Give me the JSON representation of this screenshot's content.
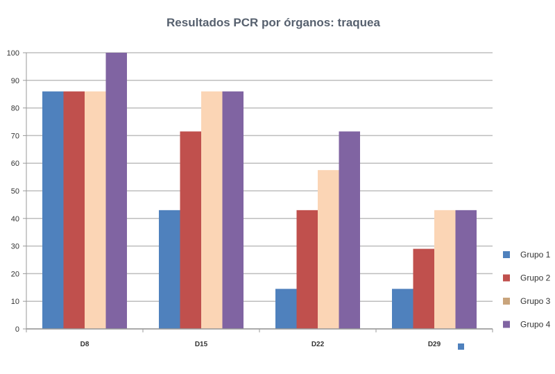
{
  "chart_data": {
    "type": "bar",
    "title": "Resultados PCR por órganos: traquea",
    "categories": [
      "D8",
      "D15",
      "D22",
      "D29"
    ],
    "ylim": [
      0,
      100
    ],
    "yticks": [
      0,
      10,
      20,
      30,
      40,
      50,
      60,
      70,
      80,
      90,
      100
    ],
    "grid": true,
    "legend_position": "right",
    "series": [
      {
        "name": "Grupo 1",
        "color": "#4f81bd",
        "values": [
          86,
          43,
          14.5,
          14.5
        ]
      },
      {
        "name": "Grupo 2",
        "color": "#c0504d",
        "values": [
          86,
          71.5,
          43,
          29
        ]
      },
      {
        "name": "Grupo 3",
        "color": "#fbd5b5",
        "legend_color": "#c9a47c",
        "values": [
          86,
          86,
          57.5,
          43
        ]
      },
      {
        "name": "Grupo 4",
        "color": "#8064a2",
        "values": [
          100,
          86,
          71.5,
          43
        ]
      }
    ]
  },
  "stray_marker_color": "#4f81bd"
}
